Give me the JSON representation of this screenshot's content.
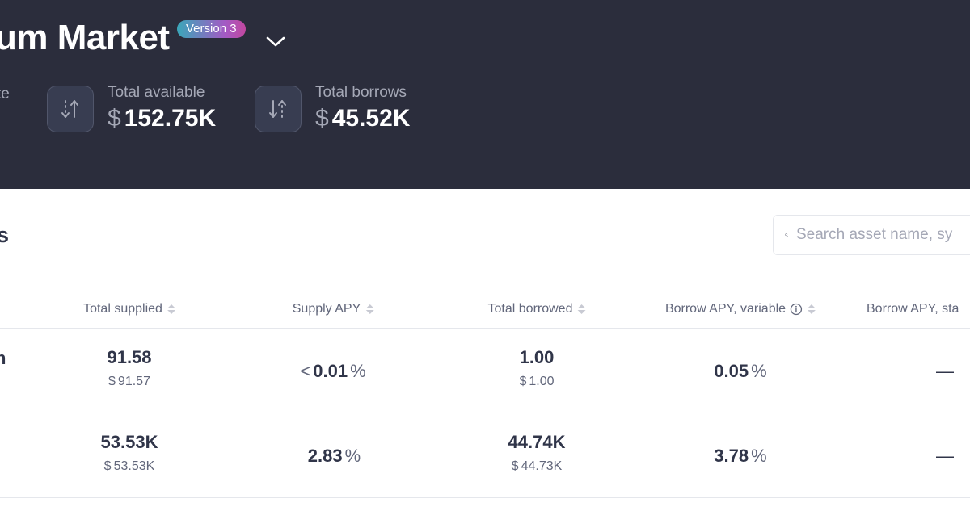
{
  "header": {
    "title_visible": "um Market",
    "version_badge": "Version 3",
    "clipped_stat_label": "te",
    "stats": [
      {
        "label": "Total available",
        "currency": "$",
        "value": "152.75K",
        "icon": "arrows-up-down-icon"
      },
      {
        "label": "Total borrows",
        "currency": "$",
        "value": "45.52K",
        "icon": "arrows-down-up-icon"
      }
    ]
  },
  "assets": {
    "title_visible": "s",
    "search": {
      "placeholder": "Search asset name, sy"
    },
    "columns": {
      "total_supplied": "Total supplied",
      "supply_apy": "Supply APY",
      "total_borrowed": "Total borrowed",
      "borrow_apy_variable": "Borrow APY, variable",
      "borrow_apy_stable": "Borrow APY, sta"
    },
    "rows": [
      {
        "name_visible": "h",
        "total_supplied": "91.58",
        "total_supplied_usd": "91.57",
        "supply_apy_prefix": "<",
        "supply_apy": "0.01",
        "total_borrowed": "1.00",
        "total_borrowed_usd": "1.00",
        "borrow_apy_variable": "0.05",
        "borrow_apy_stable": "—"
      },
      {
        "name_visible": "",
        "total_supplied": "53.53K",
        "total_supplied_usd": "53.53K",
        "supply_apy_prefix": "",
        "supply_apy": "2.83",
        "total_borrowed": "44.74K",
        "total_borrowed_usd": "44.73K",
        "borrow_apy_variable": "3.78",
        "borrow_apy_stable": "—"
      }
    ],
    "currency": "$",
    "percent": "%"
  },
  "colors": {
    "header_bg": "#2b2d3c",
    "text_primary": "#303549",
    "text_secondary": "#62677b",
    "badge_gradient_start": "#3aa7b9",
    "badge_gradient_end": "#c2479f"
  }
}
